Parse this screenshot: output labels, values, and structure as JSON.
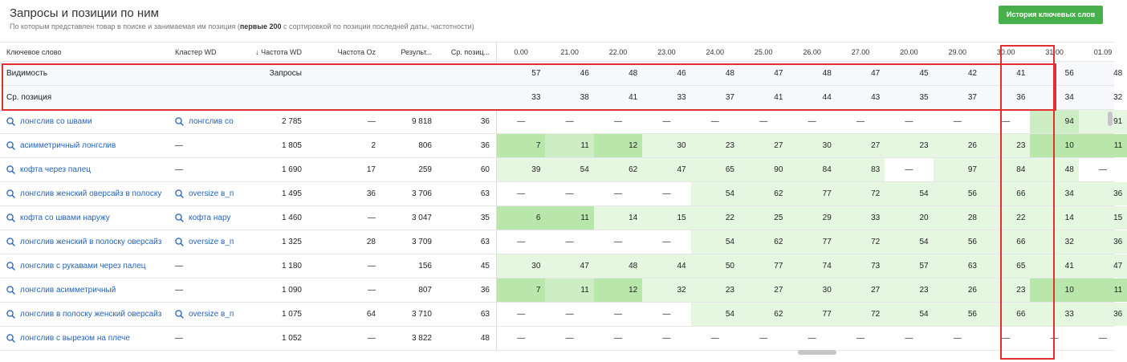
{
  "header": {
    "title": "Запросы и позиции по ним",
    "subtitle_pre": "По которым представлен товар в поиске и занимаемая им позиция (",
    "subtitle_bold": "первые 200",
    "subtitle_post": " с сортировкой по позиции последней даты, частотности)",
    "history_button": "История ключевых слов"
  },
  "columns": {
    "keyword": "Ключевое слово",
    "cluster": "Кластер WD",
    "freq_wd": "↓ Частота WD",
    "freq_oz": "Частота Oz",
    "results": "Результ...",
    "avg_pos": "Ср. позиц...",
    "dates": [
      "0.00",
      "21.00",
      "22.00",
      "23.00",
      "24.00",
      "25.00",
      "26.00",
      "27.00",
      "20.00",
      "29.00",
      "30.00",
      "31.00",
      "01.09"
    ]
  },
  "aggregates": [
    {
      "label": "Видимость",
      "extra": "Запросы",
      "values": [
        "57",
        "46",
        "48",
        "46",
        "48",
        "47",
        "48",
        "47",
        "45",
        "42",
        "41",
        "56",
        "48"
      ]
    },
    {
      "label": "Ср. позиция",
      "extra": "",
      "values": [
        "33",
        "38",
        "41",
        "33",
        "37",
        "41",
        "44",
        "43",
        "35",
        "37",
        "36",
        "34",
        "32"
      ]
    }
  ],
  "rows": [
    {
      "keyword": "лонгслив со швами",
      "cluster": "лонгслив со",
      "cluster_link": true,
      "freq_wd": "2 785",
      "freq_oz": "—",
      "results": "9 818",
      "avg_pos": "36",
      "values": [
        "—",
        "—",
        "—",
        "—",
        "—",
        "—",
        "—",
        "—",
        "—",
        "—",
        "—",
        "94",
        "91"
      ],
      "colors": [
        "",
        "",
        "",
        "",
        "",
        "",
        "",
        "",
        "",
        "",
        "",
        "m",
        "l"
      ]
    },
    {
      "keyword": "асимметричный лонгслив",
      "cluster": "—",
      "cluster_link": false,
      "freq_wd": "1 805",
      "freq_oz": "2",
      "results": "806",
      "avg_pos": "36",
      "values": [
        "7",
        "11",
        "12",
        "30",
        "23",
        "27",
        "30",
        "27",
        "23",
        "26",
        "23",
        "10",
        "11"
      ],
      "colors": [
        "s",
        "m",
        "s",
        "l",
        "l",
        "l",
        "l",
        "l",
        "l",
        "l",
        "l",
        "s",
        "s"
      ]
    },
    {
      "keyword": "кофта через палец",
      "cluster": "—",
      "cluster_link": false,
      "freq_wd": "1 690",
      "freq_oz": "17",
      "results": "259",
      "avg_pos": "60",
      "values": [
        "39",
        "54",
        "62",
        "47",
        "65",
        "90",
        "84",
        "83",
        "—",
        "97",
        "84",
        "48",
        "—"
      ],
      "colors": [
        "l",
        "l",
        "l",
        "l",
        "l",
        "l",
        "l",
        "l",
        "",
        "l",
        "l",
        "l",
        ""
      ]
    },
    {
      "keyword": "лонгслив женский оверсайз в полоску",
      "cluster": "oversize в_п",
      "cluster_link": true,
      "freq_wd": "1 495",
      "freq_oz": "36",
      "results": "3 706",
      "avg_pos": "63",
      "values": [
        "—",
        "—",
        "—",
        "—",
        "54",
        "62",
        "77",
        "72",
        "54",
        "56",
        "66",
        "34",
        "36"
      ],
      "colors": [
        "",
        "",
        "",
        "",
        "l",
        "l",
        "l",
        "l",
        "l",
        "l",
        "l",
        "l",
        "l"
      ]
    },
    {
      "keyword": "кофта со швами наружу",
      "cluster": "кофта нару",
      "cluster_link": true,
      "freq_wd": "1 460",
      "freq_oz": "—",
      "results": "3 047",
      "avg_pos": "35",
      "values": [
        "6",
        "11",
        "14",
        "15",
        "22",
        "25",
        "29",
        "33",
        "20",
        "28",
        "22",
        "14",
        "15"
      ],
      "colors": [
        "s",
        "s",
        "l",
        "l",
        "l",
        "l",
        "l",
        "l",
        "l",
        "l",
        "l",
        "l",
        "l"
      ]
    },
    {
      "keyword": "лонгслив женский в полоску оверсайз",
      "cluster": "oversize в_п",
      "cluster_link": true,
      "freq_wd": "1 325",
      "freq_oz": "28",
      "results": "3 709",
      "avg_pos": "63",
      "values": [
        "—",
        "—",
        "—",
        "—",
        "54",
        "62",
        "77",
        "72",
        "54",
        "56",
        "66",
        "32",
        "36"
      ],
      "colors": [
        "",
        "",
        "",
        "",
        "l",
        "l",
        "l",
        "l",
        "l",
        "l",
        "l",
        "l",
        "l"
      ]
    },
    {
      "keyword": "лонгслив с рукавами через палец",
      "cluster": "—",
      "cluster_link": false,
      "freq_wd": "1 180",
      "freq_oz": "—",
      "results": "156",
      "avg_pos": "45",
      "values": [
        "30",
        "47",
        "48",
        "44",
        "50",
        "77",
        "74",
        "73",
        "57",
        "63",
        "65",
        "41",
        "47"
      ],
      "colors": [
        "l",
        "l",
        "l",
        "l",
        "l",
        "l",
        "l",
        "l",
        "l",
        "l",
        "l",
        "l",
        "l"
      ]
    },
    {
      "keyword": "лонгслив асимметричный",
      "cluster": "—",
      "cluster_link": false,
      "freq_wd": "1 090",
      "freq_oz": "—",
      "results": "807",
      "avg_pos": "36",
      "values": [
        "7",
        "11",
        "12",
        "32",
        "23",
        "27",
        "30",
        "27",
        "23",
        "26",
        "23",
        "10",
        "11"
      ],
      "colors": [
        "s",
        "m",
        "s",
        "l",
        "l",
        "l",
        "l",
        "l",
        "l",
        "l",
        "l",
        "s",
        "s"
      ]
    },
    {
      "keyword": "лонгслив в полоску женский оверсайз",
      "cluster": "oversize в_п",
      "cluster_link": true,
      "freq_wd": "1 075",
      "freq_oz": "64",
      "results": "3 710",
      "avg_pos": "63",
      "values": [
        "—",
        "—",
        "—",
        "—",
        "54",
        "62",
        "77",
        "72",
        "54",
        "56",
        "66",
        "33",
        "36"
      ],
      "colors": [
        "",
        "",
        "",
        "",
        "l",
        "l",
        "l",
        "l",
        "l",
        "l",
        "l",
        "l",
        "l"
      ]
    },
    {
      "keyword": "лонгслив с вырезом на плече",
      "cluster": "—",
      "cluster_link": false,
      "freq_wd": "1 052",
      "freq_oz": "—",
      "results": "3 822",
      "avg_pos": "48",
      "values": [
        "—",
        "—",
        "—",
        "—",
        "—",
        "—",
        "—",
        "—",
        "—",
        "—",
        "—",
        "—",
        "—"
      ],
      "colors": [
        "",
        "",
        "",
        "",
        "",
        "",
        "",
        "",
        "",
        "",
        "",
        "",
        ""
      ]
    }
  ],
  "cell_colors": {
    "l": "#e5f6e1",
    "m": "#cdeec4",
    "s": "#b8e6ab"
  }
}
